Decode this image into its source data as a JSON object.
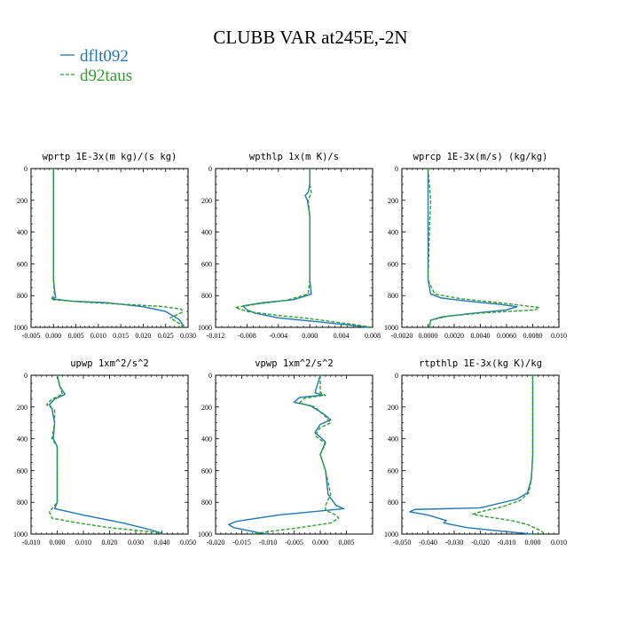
{
  "figure": {
    "title": "CLUBB VAR at245E,-2N",
    "legend": [
      {
        "name": "dflt092",
        "color": "#1f77b4",
        "dash": "solid"
      },
      {
        "name": "d92taus",
        "color": "#2ca02c",
        "dash": "dashed"
      }
    ]
  },
  "chart_data": [
    {
      "type": "line",
      "title": "wprtp  1E-3x(m kg)/(s kg)",
      "xlim": [
        -0.005,
        0.03
      ],
      "xticks": [
        "-0.005",
        "0.000",
        "0.005",
        "0.010",
        "0.015",
        "0.020",
        "0.025",
        "0.030"
      ],
      "ylim": [
        1000,
        0
      ],
      "yticks": [
        "0",
        "200",
        "400",
        "600",
        "800",
        "1000"
      ],
      "series": [
        {
          "name": "dflt092",
          "points": [
            [
              0,
              0
            ],
            [
              0,
              200
            ],
            [
              0,
              400
            ],
            [
              0,
              600
            ],
            [
              0,
              700
            ],
            [
              0.0003,
              780
            ],
            [
              0.0005,
              810
            ],
            [
              -0.0003,
              820
            ],
            [
              0.004,
              835
            ],
            [
              0.012,
              845
            ],
            [
              0.02,
              870
            ],
            [
              0.025,
              900
            ],
            [
              0.028,
              950
            ],
            [
              0.029,
              990
            ],
            [
              0.029,
              1000
            ]
          ]
        },
        {
          "name": "d92taus",
          "points": [
            [
              0,
              0
            ],
            [
              0,
              200
            ],
            [
              0,
              400
            ],
            [
              0,
              600
            ],
            [
              0,
              700
            ],
            [
              0.0002,
              790
            ],
            [
              -0.0005,
              825
            ],
            [
              0.006,
              840
            ],
            [
              0.016,
              855
            ],
            [
              0.024,
              868
            ],
            [
              0.0285,
              885
            ],
            [
              0.0288,
              905
            ],
            [
              0.026,
              940
            ],
            [
              0.028,
              975
            ],
            [
              0.029,
              1000
            ]
          ]
        }
      ]
    },
    {
      "type": "line",
      "title": "wpthlp  1x(m K)/s",
      "xlim": [
        -0.012,
        0.008
      ],
      "xticks": [
        "-0.012",
        "-0.008",
        "-0.004",
        "0.000",
        "0.004",
        "0.008"
      ],
      "ylim": [
        1000,
        0
      ],
      "yticks": [
        "0",
        "200",
        "400",
        "600",
        "800",
        "1000"
      ],
      "series": [
        {
          "name": "dflt092",
          "points": [
            [
              0,
              0
            ],
            [
              0,
              100
            ],
            [
              -0.0002,
              150
            ],
            [
              -0.0006,
              170
            ],
            [
              -0.0003,
              200
            ],
            [
              0,
              300
            ],
            [
              0,
              500
            ],
            [
              0,
              700
            ],
            [
              0.0002,
              790
            ],
            [
              -0.002,
              825
            ],
            [
              -0.006,
              845
            ],
            [
              -0.0085,
              865
            ],
            [
              -0.008,
              890
            ],
            [
              -0.007,
              910
            ],
            [
              -0.004,
              940
            ],
            [
              0.001,
              965
            ],
            [
              0.005,
              985
            ],
            [
              0.0075,
              1000
            ]
          ]
        },
        {
          "name": "d92taus",
          "points": [
            [
              0,
              0
            ],
            [
              0,
              100
            ],
            [
              0.0002,
              150
            ],
            [
              -0.0002,
              200
            ],
            [
              0,
              300
            ],
            [
              0,
              500
            ],
            [
              0,
              700
            ],
            [
              -0.0002,
              790
            ],
            [
              -0.003,
              830
            ],
            [
              -0.007,
              855
            ],
            [
              -0.0095,
              875
            ],
            [
              -0.008,
              900
            ],
            [
              -0.004,
              925
            ],
            [
              0,
              945
            ],
            [
              0.003,
              965
            ],
            [
              0.006,
              985
            ],
            [
              0.008,
              1000
            ]
          ]
        }
      ]
    },
    {
      "type": "line",
      "title": "wprcp  1E-3x(m/s) (kg/kg)",
      "xlim": [
        -0.002,
        0.01
      ],
      "xticks": [
        "-0.0020",
        "0.0000",
        "0.0020",
        "0.0040",
        "0.0060",
        "0.0080",
        "0.010"
      ],
      "ylim": [
        1000,
        0
      ],
      "yticks": [
        "0",
        "200",
        "400",
        "600",
        "800",
        "1000"
      ],
      "series": [
        {
          "name": "dflt092",
          "points": [
            [
              0,
              0
            ],
            [
              0,
              400
            ],
            [
              0,
              700
            ],
            [
              0.0002,
              790
            ],
            [
              0.001,
              815
            ],
            [
              0.003,
              835
            ],
            [
              0.0055,
              855
            ],
            [
              0.0068,
              870
            ],
            [
              0.006,
              890
            ],
            [
              0.003,
              915
            ],
            [
              0.001,
              935
            ],
            [
              0.0002,
              955
            ],
            [
              0.0001,
              1000
            ]
          ]
        },
        {
          "name": "d92taus",
          "points": [
            [
              0,
              0
            ],
            [
              0.0002,
              200
            ],
            [
              0.0001,
              400
            ],
            [
              0,
              700
            ],
            [
              0.0005,
              790
            ],
            [
              0.0025,
              820
            ],
            [
              0.006,
              850
            ],
            [
              0.0085,
              875
            ],
            [
              0.0082,
              890
            ],
            [
              0.004,
              910
            ],
            [
              0.0015,
              930
            ],
            [
              0.0002,
              955
            ],
            [
              0.0001,
              1000
            ]
          ]
        }
      ]
    },
    {
      "type": "line",
      "title": "upwp  1xm^2/s^2",
      "xlim": [
        -0.01,
        0.05
      ],
      "xticks": [
        "-0.010",
        "0.000",
        "0.010",
        "0.020",
        "0.030",
        "0.040",
        "0.050"
      ],
      "ylim": [
        1000,
        0
      ],
      "yticks": [
        "0",
        "200",
        "400",
        "600",
        "800",
        "1000"
      ],
      "series": [
        {
          "name": "dflt092",
          "points": [
            [
              0,
              0
            ],
            [
              0.001,
              70
            ],
            [
              0.003,
              120
            ],
            [
              -0.001,
              150
            ],
            [
              -0.003,
              185
            ],
            [
              -0.002,
              210
            ],
            [
              -0.001,
              300
            ],
            [
              -0.0015,
              400
            ],
            [
              0,
              450
            ],
            [
              0,
              600
            ],
            [
              0,
              800
            ],
            [
              -0.001,
              840
            ],
            [
              0.01,
              880
            ],
            [
              0.025,
              930
            ],
            [
              0.035,
              970
            ],
            [
              0.041,
              1000
            ]
          ]
        },
        {
          "name": "d92taus",
          "points": [
            [
              0,
              0
            ],
            [
              0.001,
              70
            ],
            [
              0.002,
              120
            ],
            [
              -0.002,
              150
            ],
            [
              -0.004,
              185
            ],
            [
              -0.001,
              220
            ],
            [
              -0.001,
              300
            ],
            [
              -0.002,
              400
            ],
            [
              0,
              450
            ],
            [
              0,
              600
            ],
            [
              0,
              800
            ],
            [
              -0.003,
              860
            ],
            [
              -0.002,
              900
            ],
            [
              0.008,
              930
            ],
            [
              0.02,
              960
            ],
            [
              0.038,
              990
            ],
            [
              0.04,
              1000
            ]
          ]
        }
      ]
    },
    {
      "type": "line",
      "title": "vpwp  1xm^2/s^2",
      "xlim": [
        -0.02,
        0.01
      ],
      "xticks": [
        "-0.020",
        "-0.015",
        "-0.010",
        "-0.005",
        "0.000",
        "0.005"
      ],
      "ylim": [
        1000,
        0
      ],
      "yticks": [
        "0",
        "200",
        "400",
        "600",
        "800",
        "1000"
      ],
      "series": [
        {
          "name": "dflt092",
          "points": [
            [
              0,
              0
            ],
            [
              -0.001,
              110
            ],
            [
              0.0005,
              125
            ],
            [
              -0.004,
              140
            ],
            [
              -0.005,
              170
            ],
            [
              -0.002,
              190
            ],
            [
              0.0005,
              240
            ],
            [
              0.002,
              280
            ],
            [
              0,
              310
            ],
            [
              -0.001,
              360
            ],
            [
              0.001,
              420
            ],
            [
              0,
              500
            ],
            [
              0.001,
              600
            ],
            [
              0.0015,
              750
            ],
            [
              0.003,
              820
            ],
            [
              0.0045,
              840
            ],
            [
              -0.008,
              880
            ],
            [
              -0.016,
              920
            ],
            [
              -0.0175,
              940
            ],
            [
              -0.0165,
              960
            ],
            [
              -0.012,
              990
            ],
            [
              -0.01,
              1000
            ]
          ]
        },
        {
          "name": "d92taus",
          "points": [
            [
              0,
              0
            ],
            [
              0,
              110
            ],
            [
              0.001,
              125
            ],
            [
              -0.003,
              145
            ],
            [
              -0.004,
              175
            ],
            [
              -0.001,
              200
            ],
            [
              0.001,
              260
            ],
            [
              0.002,
              300
            ],
            [
              0,
              330
            ],
            [
              -0.001,
              380
            ],
            [
              0.001,
              430
            ],
            [
              0,
              500
            ],
            [
              0.001,
              600
            ],
            [
              0.002,
              750
            ],
            [
              0.001,
              820
            ],
            [
              0.001,
              850
            ],
            [
              0.003,
              880
            ],
            [
              0.0035,
              900
            ],
            [
              0.002,
              930
            ],
            [
              -0.004,
              960
            ],
            [
              -0.01,
              985
            ],
            [
              -0.013,
              1000
            ]
          ]
        }
      ]
    },
    {
      "type": "line",
      "title": "rtpthlp  1E-3x(kg K)/kg",
      "xlim": [
        -0.05,
        0.01
      ],
      "xticks": [
        "-0.050",
        "-0.040",
        "-0.030",
        "-0.020",
        "-0.010",
        "0.000",
        "0.010"
      ],
      "ylim": [
        1000,
        0
      ],
      "yticks": [
        "0",
        "200",
        "400",
        "600",
        "800",
        "1000"
      ],
      "series": [
        {
          "name": "dflt092",
          "points": [
            [
              0,
              0
            ],
            [
              0,
              300
            ],
            [
              0,
              500
            ],
            [
              -0.0005,
              650
            ],
            [
              -0.002,
              740
            ],
            [
              -0.006,
              780
            ],
            [
              -0.02,
              835
            ],
            [
              -0.045,
              845
            ],
            [
              -0.047,
              860
            ],
            [
              -0.04,
              880
            ],
            [
              -0.033,
              915
            ],
            [
              -0.034,
              930
            ],
            [
              -0.025,
              960
            ],
            [
              -0.01,
              985
            ],
            [
              0,
              1000
            ]
          ]
        },
        {
          "name": "d92taus",
          "points": [
            [
              0,
              0
            ],
            [
              0,
              300
            ],
            [
              0,
              500
            ],
            [
              -0.0005,
              650
            ],
            [
              -0.0015,
              740
            ],
            [
              -0.005,
              790
            ],
            [
              -0.012,
              830
            ],
            [
              -0.02,
              860
            ],
            [
              -0.023,
              875
            ],
            [
              -0.018,
              890
            ],
            [
              -0.008,
              915
            ],
            [
              -0.002,
              940
            ],
            [
              0.002,
              970
            ],
            [
              0.004,
              990
            ],
            [
              0.004,
              1000
            ]
          ]
        }
      ]
    }
  ]
}
